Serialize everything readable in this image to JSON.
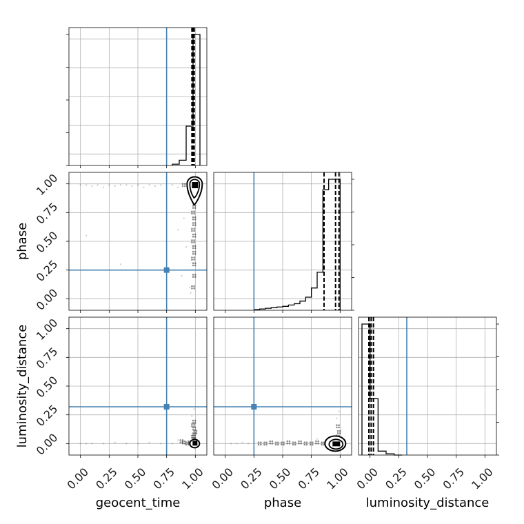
{
  "chart_data": {
    "type": "corner",
    "parameters": [
      "geocent_time",
      "phase",
      "luminosity_distance"
    ],
    "axis_range": [
      -0.1,
      1.1
    ],
    "ticks": [
      0.0,
      0.25,
      0.5,
      0.75,
      1.0
    ],
    "tick_labels": [
      "0.00",
      "0.25",
      "0.50",
      "0.75",
      "1.00"
    ],
    "grid": true,
    "truth_color": "#4682b4",
    "truths": {
      "geocent_time": 0.75,
      "phase": 0.25,
      "luminosity_distance": 0.32
    },
    "marginals": [
      {
        "parameter": "geocent_time",
        "bin_edges": [
          0.8,
          0.86,
          0.92,
          0.98,
          1.04
        ],
        "counts": [
          0.01,
          0.04,
          0.3,
          1.0
        ],
        "quantile_lines": [
          0.97,
          0.98,
          0.99
        ]
      },
      {
        "parameter": "phase",
        "bin_edges": [
          0.25,
          0.3,
          0.35,
          0.4,
          0.45,
          0.5,
          0.55,
          0.6,
          0.65,
          0.7,
          0.75,
          0.8,
          0.85,
          0.9,
          0.95,
          1.0
        ],
        "counts": [
          0.005,
          0.01,
          0.015,
          0.02,
          0.025,
          0.03,
          0.04,
          0.05,
          0.07,
          0.1,
          0.17,
          0.29,
          0.92,
          1.0,
          1.0
        ],
        "quantile_lines": [
          0.86,
          0.96,
          0.99
        ]
      },
      {
        "parameter": "luminosity_distance",
        "bin_edges": [
          -0.07,
          0.0,
          0.07,
          0.14,
          0.21,
          0.28
        ],
        "counts": [
          1.0,
          0.43,
          0.03,
          0.01,
          0.0
        ],
        "quantile_lines": [
          -0.01,
          0.01,
          0.03
        ]
      }
    ],
    "scatter_panels": [
      {
        "x": "geocent_time",
        "y": "phase",
        "dense_points": [
          [
            0.98,
            0.97
          ],
          [
            0.99,
            0.98
          ],
          [
            0.99,
            0.95
          ],
          [
            1.0,
            0.9
          ],
          [
            0.99,
            0.85
          ],
          [
            0.99,
            0.8
          ],
          [
            0.98,
            0.75
          ],
          [
            0.99,
            0.7
          ],
          [
            0.99,
            0.65
          ],
          [
            0.98,
            0.6
          ],
          [
            0.99,
            0.55
          ],
          [
            0.98,
            0.5
          ],
          [
            0.99,
            0.45
          ],
          [
            0.99,
            0.4
          ],
          [
            0.98,
            0.35
          ],
          [
            0.99,
            0.3
          ],
          [
            0.99,
            0.2
          ],
          [
            0.98,
            0.1
          ],
          [
            0.95,
            0.99
          ],
          [
            0.9,
            0.99
          ]
        ],
        "sparse_points": [
          [
            0.0,
            0.99
          ],
          [
            0.05,
            0.99
          ],
          [
            0.1,
            0.98
          ],
          [
            0.15,
            0.99
          ],
          [
            0.2,
            0.97
          ],
          [
            0.25,
            0.99
          ],
          [
            0.3,
            0.98
          ],
          [
            0.35,
            0.99
          ],
          [
            0.4,
            0.99
          ],
          [
            0.45,
            0.98
          ],
          [
            0.5,
            0.99
          ],
          [
            0.55,
            0.97
          ],
          [
            0.6,
            0.99
          ],
          [
            0.65,
            0.98
          ],
          [
            0.7,
            0.99
          ],
          [
            0.8,
            0.99
          ],
          [
            0.85,
            0.97
          ],
          [
            0.05,
            0.55
          ],
          [
            0.35,
            0.3
          ],
          [
            0.85,
            0.6
          ],
          [
            0.9,
            0.7
          ],
          [
            0.92,
            0.45
          ],
          [
            0.88,
            0.2
          ],
          [
            0.95,
            0.1
          ],
          [
            0.96,
            0.05
          ]
        ],
        "contour_center": [
          1.0,
          0.95
        ]
      },
      {
        "x": "geocent_time",
        "y": "luminosity_distance",
        "dense_points": [
          [
            0.98,
            0.0
          ],
          [
            0.99,
            0.01
          ],
          [
            1.0,
            0.02
          ],
          [
            0.99,
            0.04
          ],
          [
            0.98,
            0.06
          ],
          [
            0.99,
            0.08
          ],
          [
            1.0,
            0.1
          ],
          [
            0.99,
            0.13
          ],
          [
            0.98,
            0.16
          ],
          [
            0.99,
            0.19
          ],
          [
            0.97,
            0.01
          ],
          [
            0.95,
            0.01
          ],
          [
            0.93,
            0.0
          ],
          [
            0.9,
            0.01
          ],
          [
            0.88,
            0.02
          ]
        ],
        "sparse_points": [
          [
            0.0,
            0.0
          ],
          [
            0.05,
            0.0
          ],
          [
            0.1,
            0.0
          ],
          [
            0.2,
            0.0
          ],
          [
            0.3,
            0.01
          ],
          [
            0.4,
            0.0
          ],
          [
            0.5,
            0.0
          ],
          [
            0.6,
            0.01
          ],
          [
            0.7,
            0.0
          ],
          [
            0.8,
            0.0
          ],
          [
            0.85,
            0.03
          ],
          [
            0.97,
            0.24
          ],
          [
            0.99,
            0.3
          ]
        ],
        "contour_center": [
          1.0,
          0.0
        ]
      },
      {
        "x": "phase",
        "y": "luminosity_distance",
        "dense_points": [
          [
            0.95,
            0.0
          ],
          [
            0.9,
            0.01
          ],
          [
            0.85,
            0.0
          ],
          [
            0.8,
            0.01
          ],
          [
            0.75,
            0.0
          ],
          [
            0.7,
            0.0
          ],
          [
            0.65,
            0.01
          ],
          [
            0.6,
            0.0
          ],
          [
            0.55,
            0.01
          ],
          [
            0.5,
            0.0
          ],
          [
            0.45,
            0.0
          ],
          [
            0.4,
            0.01
          ],
          [
            0.35,
            0.0
          ],
          [
            0.3,
            0.0
          ],
          [
            0.97,
            0.03
          ],
          [
            0.98,
            0.06
          ],
          [
            0.99,
            0.1
          ],
          [
            0.98,
            0.15
          ]
        ],
        "sparse_points": [
          [
            0.2,
            0.0
          ],
          [
            0.15,
            0.01
          ],
          [
            0.1,
            0.0
          ],
          [
            0.05,
            0.0
          ],
          [
            0.97,
            0.22
          ],
          [
            0.99,
            0.28
          ],
          [
            0.9,
            0.05
          ],
          [
            0.8,
            0.04
          ]
        ],
        "contour_center": [
          0.97,
          0.0
        ]
      }
    ]
  }
}
